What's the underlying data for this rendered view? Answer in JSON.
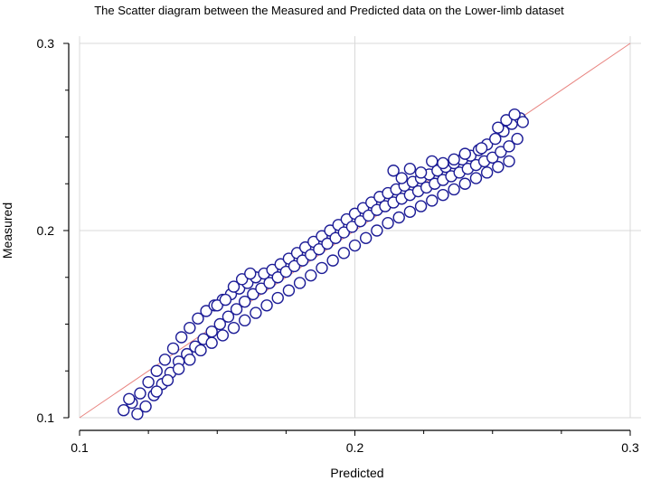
{
  "chart_data": {
    "type": "scatter",
    "title": "The Scatter diagram between the Measured and Predicted data on the Lower-limb dataset",
    "xlabel": "Predicted",
    "ylabel": "Measured",
    "xlim": [
      0.1,
      0.3
    ],
    "ylim": [
      0.1,
      0.3
    ],
    "xticks": [
      "0.1",
      "0.2",
      "0.3"
    ],
    "yticks": [
      "0.1",
      "0.2",
      "0.3"
    ],
    "grid": true,
    "reference_line": {
      "x": [
        0.1,
        0.3
      ],
      "y": [
        0.1,
        0.3
      ],
      "color": "#e8837f"
    },
    "marker": {
      "shape": "circle",
      "fill": "#ffffff",
      "stroke": "#1c1c96"
    },
    "series": [
      {
        "points": [
          [
            0.116,
            0.104
          ],
          [
            0.119,
            0.108
          ],
          [
            0.122,
            0.113
          ],
          [
            0.125,
            0.119
          ],
          [
            0.128,
            0.125
          ],
          [
            0.131,
            0.131
          ],
          [
            0.134,
            0.137
          ],
          [
            0.137,
            0.143
          ],
          [
            0.14,
            0.148
          ],
          [
            0.143,
            0.153
          ],
          [
            0.146,
            0.157
          ],
          [
            0.149,
            0.16
          ],
          [
            0.152,
            0.163
          ],
          [
            0.155,
            0.166
          ],
          [
            0.158,
            0.169
          ],
          [
            0.161,
            0.172
          ],
          [
            0.164,
            0.175
          ],
          [
            0.167,
            0.177
          ],
          [
            0.17,
            0.179
          ],
          [
            0.173,
            0.182
          ],
          [
            0.176,
            0.185
          ],
          [
            0.179,
            0.188
          ],
          [
            0.182,
            0.191
          ],
          [
            0.185,
            0.194
          ],
          [
            0.188,
            0.197
          ],
          [
            0.191,
            0.2
          ],
          [
            0.194,
            0.203
          ],
          [
            0.197,
            0.206
          ],
          [
            0.2,
            0.209
          ],
          [
            0.203,
            0.212
          ],
          [
            0.206,
            0.215
          ],
          [
            0.209,
            0.218
          ],
          [
            0.212,
            0.22
          ],
          [
            0.215,
            0.222
          ],
          [
            0.218,
            0.224
          ],
          [
            0.221,
            0.226
          ],
          [
            0.224,
            0.228
          ],
          [
            0.227,
            0.23
          ],
          [
            0.23,
            0.232
          ],
          [
            0.233,
            0.234
          ],
          [
            0.236,
            0.236
          ],
          [
            0.239,
            0.238
          ],
          [
            0.242,
            0.24
          ],
          [
            0.245,
            0.243
          ],
          [
            0.248,
            0.246
          ],
          [
            0.251,
            0.249
          ],
          [
            0.254,
            0.253
          ],
          [
            0.257,
            0.257
          ],
          [
            0.26,
            0.26
          ],
          [
            0.118,
            0.11
          ],
          [
            0.121,
            0.102
          ],
          [
            0.124,
            0.106
          ],
          [
            0.127,
            0.112
          ],
          [
            0.13,
            0.118
          ],
          [
            0.133,
            0.124
          ],
          [
            0.136,
            0.13
          ],
          [
            0.139,
            0.134
          ],
          [
            0.142,
            0.138
          ],
          [
            0.145,
            0.142
          ],
          [
            0.148,
            0.146
          ],
          [
            0.151,
            0.15
          ],
          [
            0.154,
            0.154
          ],
          [
            0.157,
            0.158
          ],
          [
            0.16,
            0.162
          ],
          [
            0.163,
            0.166
          ],
          [
            0.166,
            0.169
          ],
          [
            0.169,
            0.172
          ],
          [
            0.172,
            0.175
          ],
          [
            0.175,
            0.178
          ],
          [
            0.178,
            0.181
          ],
          [
            0.181,
            0.184
          ],
          [
            0.184,
            0.187
          ],
          [
            0.187,
            0.19
          ],
          [
            0.19,
            0.193
          ],
          [
            0.193,
            0.196
          ],
          [
            0.196,
            0.199
          ],
          [
            0.199,
            0.202
          ],
          [
            0.202,
            0.205
          ],
          [
            0.205,
            0.208
          ],
          [
            0.208,
            0.211
          ],
          [
            0.211,
            0.213
          ],
          [
            0.214,
            0.215
          ],
          [
            0.217,
            0.217
          ],
          [
            0.22,
            0.219
          ],
          [
            0.223,
            0.221
          ],
          [
            0.226,
            0.223
          ],
          [
            0.229,
            0.225
          ],
          [
            0.232,
            0.227
          ],
          [
            0.235,
            0.229
          ],
          [
            0.238,
            0.231
          ],
          [
            0.241,
            0.233
          ],
          [
            0.244,
            0.235
          ],
          [
            0.247,
            0.237
          ],
          [
            0.25,
            0.239
          ],
          [
            0.253,
            0.242
          ],
          [
            0.256,
            0.245
          ],
          [
            0.259,
            0.249
          ],
          [
            0.128,
            0.114
          ],
          [
            0.132,
            0.12
          ],
          [
            0.136,
            0.126
          ],
          [
            0.14,
            0.131
          ],
          [
            0.144,
            0.136
          ],
          [
            0.148,
            0.14
          ],
          [
            0.152,
            0.144
          ],
          [
            0.156,
            0.148
          ],
          [
            0.16,
            0.152
          ],
          [
            0.164,
            0.156
          ],
          [
            0.168,
            0.16
          ],
          [
            0.172,
            0.164
          ],
          [
            0.176,
            0.168
          ],
          [
            0.18,
            0.172
          ],
          [
            0.184,
            0.176
          ],
          [
            0.188,
            0.18
          ],
          [
            0.192,
            0.184
          ],
          [
            0.196,
            0.188
          ],
          [
            0.2,
            0.192
          ],
          [
            0.204,
            0.196
          ],
          [
            0.208,
            0.2
          ],
          [
            0.212,
            0.204
          ],
          [
            0.216,
            0.207
          ],
          [
            0.22,
            0.21
          ],
          [
            0.224,
            0.213
          ],
          [
            0.228,
            0.216
          ],
          [
            0.232,
            0.219
          ],
          [
            0.236,
            0.222
          ],
          [
            0.24,
            0.225
          ],
          [
            0.244,
            0.228
          ],
          [
            0.248,
            0.231
          ],
          [
            0.252,
            0.234
          ],
          [
            0.256,
            0.237
          ],
          [
            0.15,
            0.16
          ],
          [
            0.153,
            0.163
          ],
          [
            0.156,
            0.17
          ],
          [
            0.159,
            0.174
          ],
          [
            0.162,
            0.177
          ],
          [
            0.214,
            0.232
          ],
          [
            0.217,
            0.228
          ],
          [
            0.22,
            0.233
          ],
          [
            0.224,
            0.231
          ],
          [
            0.228,
            0.237
          ],
          [
            0.232,
            0.236
          ],
          [
            0.236,
            0.238
          ],
          [
            0.24,
            0.241
          ],
          [
            0.246,
            0.244
          ],
          [
            0.252,
            0.255
          ],
          [
            0.255,
            0.259
          ],
          [
            0.258,
            0.262
          ],
          [
            0.261,
            0.258
          ]
        ]
      }
    ]
  }
}
